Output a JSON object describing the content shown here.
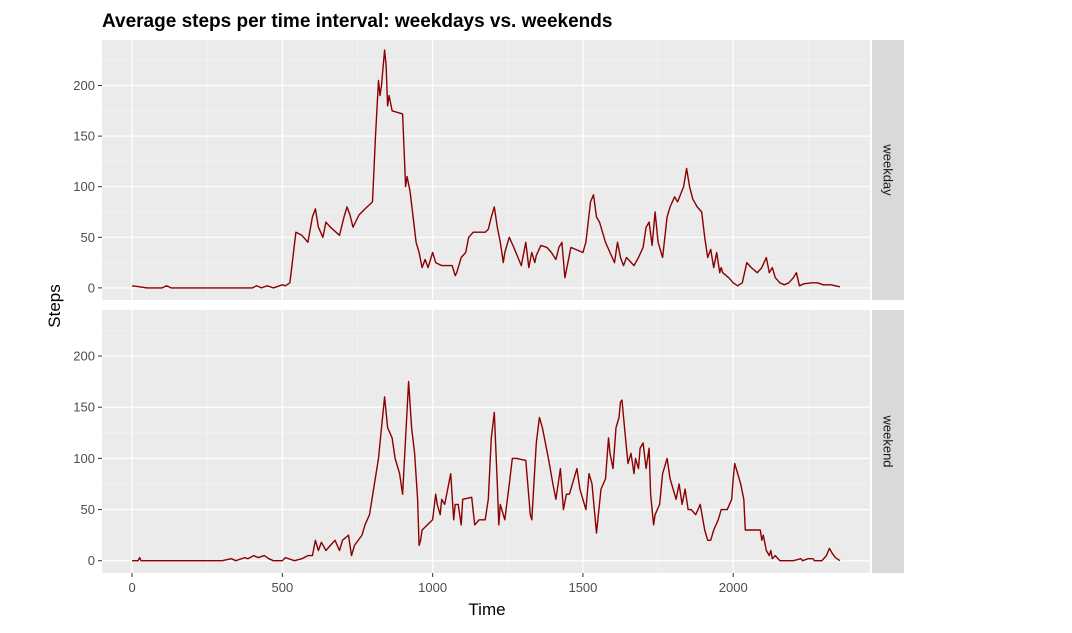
{
  "chart_data": {
    "type": "line",
    "title": "Average steps per time interval: weekdays vs. weekends",
    "xlabel": "Time",
    "ylabel": "Steps",
    "xlim": [
      -100,
      2455
    ],
    "ylim": [
      -12,
      245
    ],
    "x_ticks": [
      0,
      500,
      1000,
      1500,
      2000
    ],
    "y_ticks": [
      0,
      50,
      100,
      150,
      200
    ],
    "grid": true,
    "line_color": "#8b0000",
    "panel_bg": "#ebebeb",
    "strip_bg": "#d9d9d9",
    "panels": [
      {
        "label": "weekday",
        "points": [
          [
            0,
            2
          ],
          [
            25,
            1
          ],
          [
            50,
            0
          ],
          [
            100,
            0
          ],
          [
            115,
            2
          ],
          [
            130,
            0
          ],
          [
            200,
            0
          ],
          [
            300,
            0
          ],
          [
            400,
            0
          ],
          [
            415,
            2
          ],
          [
            430,
            0
          ],
          [
            450,
            2
          ],
          [
            470,
            0
          ],
          [
            500,
            3
          ],
          [
            510,
            2
          ],
          [
            525,
            5
          ],
          [
            535,
            30
          ],
          [
            545,
            55
          ],
          [
            565,
            52
          ],
          [
            585,
            45
          ],
          [
            600,
            70
          ],
          [
            610,
            78
          ],
          [
            620,
            60
          ],
          [
            635,
            50
          ],
          [
            645,
            65
          ],
          [
            660,
            60
          ],
          [
            690,
            52
          ],
          [
            705,
            70
          ],
          [
            715,
            80
          ],
          [
            725,
            72
          ],
          [
            735,
            60
          ],
          [
            755,
            72
          ],
          [
            775,
            78
          ],
          [
            800,
            85
          ],
          [
            810,
            150
          ],
          [
            820,
            205
          ],
          [
            825,
            190
          ],
          [
            830,
            200
          ],
          [
            840,
            235
          ],
          [
            845,
            220
          ],
          [
            850,
            180
          ],
          [
            855,
            190
          ],
          [
            865,
            175
          ],
          [
            900,
            172
          ],
          [
            910,
            100
          ],
          [
            915,
            110
          ],
          [
            925,
            95
          ],
          [
            935,
            70
          ],
          [
            945,
            45
          ],
          [
            955,
            35
          ],
          [
            965,
            20
          ],
          [
            975,
            28
          ],
          [
            985,
            20
          ],
          [
            1000,
            35
          ],
          [
            1010,
            25
          ],
          [
            1030,
            22
          ],
          [
            1065,
            22
          ],
          [
            1075,
            12
          ],
          [
            1080,
            15
          ],
          [
            1095,
            30
          ],
          [
            1110,
            35
          ],
          [
            1120,
            50
          ],
          [
            1135,
            55
          ],
          [
            1175,
            55
          ],
          [
            1185,
            58
          ],
          [
            1195,
            70
          ],
          [
            1205,
            80
          ],
          [
            1215,
            60
          ],
          [
            1225,
            45
          ],
          [
            1235,
            25
          ],
          [
            1240,
            35
          ],
          [
            1255,
            50
          ],
          [
            1270,
            40
          ],
          [
            1295,
            22
          ],
          [
            1310,
            45
          ],
          [
            1320,
            20
          ],
          [
            1330,
            35
          ],
          [
            1340,
            25
          ],
          [
            1345,
            32
          ],
          [
            1360,
            42
          ],
          [
            1380,
            40
          ],
          [
            1395,
            35
          ],
          [
            1410,
            28
          ],
          [
            1420,
            40
          ],
          [
            1430,
            45
          ],
          [
            1440,
            10
          ],
          [
            1460,
            40
          ],
          [
            1500,
            35
          ],
          [
            1510,
            45
          ],
          [
            1525,
            85
          ],
          [
            1535,
            92
          ],
          [
            1545,
            70
          ],
          [
            1555,
            65
          ],
          [
            1575,
            45
          ],
          [
            1590,
            35
          ],
          [
            1605,
            25
          ],
          [
            1615,
            45
          ],
          [
            1625,
            30
          ],
          [
            1635,
            22
          ],
          [
            1645,
            30
          ],
          [
            1670,
            22
          ],
          [
            1685,
            30
          ],
          [
            1700,
            40
          ],
          [
            1710,
            60
          ],
          [
            1720,
            65
          ],
          [
            1730,
            42
          ],
          [
            1740,
            75
          ],
          [
            1750,
            45
          ],
          [
            1765,
            30
          ],
          [
            1780,
            70
          ],
          [
            1790,
            80
          ],
          [
            1805,
            90
          ],
          [
            1815,
            85
          ],
          [
            1835,
            100
          ],
          [
            1845,
            118
          ],
          [
            1855,
            100
          ],
          [
            1865,
            88
          ],
          [
            1880,
            80
          ],
          [
            1895,
            75
          ],
          [
            1905,
            50
          ],
          [
            1915,
            30
          ],
          [
            1925,
            38
          ],
          [
            1935,
            20
          ],
          [
            1945,
            35
          ],
          [
            1955,
            15
          ],
          [
            1960,
            20
          ],
          [
            1965,
            15
          ],
          [
            1985,
            10
          ],
          [
            2000,
            5
          ],
          [
            2015,
            2
          ],
          [
            2030,
            5
          ],
          [
            2045,
            25
          ],
          [
            2060,
            20
          ],
          [
            2080,
            15
          ],
          [
            2095,
            20
          ],
          [
            2110,
            30
          ],
          [
            2120,
            15
          ],
          [
            2130,
            20
          ],
          [
            2140,
            10
          ],
          [
            2155,
            5
          ],
          [
            2170,
            3
          ],
          [
            2185,
            5
          ],
          [
            2200,
            10
          ],
          [
            2210,
            15
          ],
          [
            2220,
            2
          ],
          [
            2235,
            4
          ],
          [
            2260,
            5
          ],
          [
            2280,
            5
          ],
          [
            2300,
            3
          ],
          [
            2325,
            3
          ],
          [
            2340,
            2
          ],
          [
            2355,
            1
          ]
        ]
      },
      {
        "label": "weekend",
        "points": [
          [
            0,
            0
          ],
          [
            20,
            0
          ],
          [
            25,
            3
          ],
          [
            30,
            0
          ],
          [
            100,
            0
          ],
          [
            200,
            0
          ],
          [
            300,
            0
          ],
          [
            330,
            2
          ],
          [
            345,
            0
          ],
          [
            375,
            3
          ],
          [
            385,
            2
          ],
          [
            405,
            5
          ],
          [
            420,
            3
          ],
          [
            440,
            5
          ],
          [
            455,
            2
          ],
          [
            470,
            0
          ],
          [
            500,
            0
          ],
          [
            510,
            3
          ],
          [
            540,
            0
          ],
          [
            565,
            2
          ],
          [
            585,
            5
          ],
          [
            600,
            5
          ],
          [
            610,
            20
          ],
          [
            620,
            10
          ],
          [
            630,
            18
          ],
          [
            645,
            10
          ],
          [
            660,
            15
          ],
          [
            675,
            20
          ],
          [
            690,
            10
          ],
          [
            700,
            20
          ],
          [
            720,
            25
          ],
          [
            730,
            5
          ],
          [
            740,
            15
          ],
          [
            765,
            25
          ],
          [
            775,
            35
          ],
          [
            790,
            45
          ],
          [
            820,
            100
          ],
          [
            830,
            130
          ],
          [
            840,
            160
          ],
          [
            850,
            130
          ],
          [
            865,
            120
          ],
          [
            875,
            100
          ],
          [
            880,
            95
          ],
          [
            890,
            85
          ],
          [
            900,
            65
          ],
          [
            910,
            120
          ],
          [
            920,
            175
          ],
          [
            930,
            130
          ],
          [
            940,
            105
          ],
          [
            950,
            60
          ],
          [
            955,
            15
          ],
          [
            960,
            20
          ],
          [
            965,
            30
          ],
          [
            1000,
            40
          ],
          [
            1010,
            65
          ],
          [
            1015,
            55
          ],
          [
            1025,
            45
          ],
          [
            1030,
            60
          ],
          [
            1040,
            55
          ],
          [
            1060,
            85
          ],
          [
            1070,
            40
          ],
          [
            1075,
            55
          ],
          [
            1085,
            55
          ],
          [
            1095,
            35
          ],
          [
            1100,
            60
          ],
          [
            1130,
            62
          ],
          [
            1140,
            35
          ],
          [
            1155,
            40
          ],
          [
            1175,
            40
          ],
          [
            1185,
            60
          ],
          [
            1195,
            120
          ],
          [
            1205,
            145
          ],
          [
            1215,
            75
          ],
          [
            1220,
            35
          ],
          [
            1225,
            55
          ],
          [
            1240,
            40
          ],
          [
            1255,
            75
          ],
          [
            1265,
            100
          ],
          [
            1280,
            100
          ],
          [
            1310,
            98
          ],
          [
            1325,
            45
          ],
          [
            1330,
            40
          ],
          [
            1345,
            115
          ],
          [
            1355,
            140
          ],
          [
            1365,
            130
          ],
          [
            1385,
            100
          ],
          [
            1400,
            75
          ],
          [
            1410,
            60
          ],
          [
            1425,
            90
          ],
          [
            1435,
            50
          ],
          [
            1445,
            65
          ],
          [
            1455,
            65
          ],
          [
            1480,
            90
          ],
          [
            1490,
            70
          ],
          [
            1510,
            50
          ],
          [
            1520,
            85
          ],
          [
            1530,
            75
          ],
          [
            1545,
            27
          ],
          [
            1560,
            70
          ],
          [
            1575,
            80
          ],
          [
            1585,
            120
          ],
          [
            1590,
            105
          ],
          [
            1600,
            90
          ],
          [
            1610,
            130
          ],
          [
            1620,
            140
          ],
          [
            1625,
            155
          ],
          [
            1630,
            157
          ],
          [
            1640,
            125
          ],
          [
            1650,
            95
          ],
          [
            1660,
            105
          ],
          [
            1670,
            85
          ],
          [
            1675,
            100
          ],
          [
            1685,
            90
          ],
          [
            1690,
            110
          ],
          [
            1700,
            115
          ],
          [
            1710,
            90
          ],
          [
            1720,
            110
          ],
          [
            1725,
            65
          ],
          [
            1730,
            50
          ],
          [
            1735,
            35
          ],
          [
            1740,
            45
          ],
          [
            1755,
            55
          ],
          [
            1765,
            85
          ],
          [
            1780,
            100
          ],
          [
            1790,
            80
          ],
          [
            1800,
            70
          ],
          [
            1810,
            60
          ],
          [
            1820,
            75
          ],
          [
            1830,
            55
          ],
          [
            1840,
            70
          ],
          [
            1850,
            50
          ],
          [
            1860,
            50
          ],
          [
            1875,
            45
          ],
          [
            1890,
            55
          ],
          [
            1905,
            30
          ],
          [
            1915,
            20
          ],
          [
            1925,
            20
          ],
          [
            1935,
            30
          ],
          [
            1950,
            40
          ],
          [
            1960,
            50
          ],
          [
            1980,
            50
          ],
          [
            1995,
            60
          ],
          [
            2000,
            80
          ],
          [
            2005,
            95
          ],
          [
            2015,
            85
          ],
          [
            2025,
            75
          ],
          [
            2035,
            60
          ],
          [
            2040,
            30
          ],
          [
            2090,
            30
          ],
          [
            2095,
            20
          ],
          [
            2100,
            25
          ],
          [
            2110,
            10
          ],
          [
            2120,
            5
          ],
          [
            2125,
            10
          ],
          [
            2130,
            2
          ],
          [
            2140,
            5
          ],
          [
            2155,
            0
          ],
          [
            2200,
            0
          ],
          [
            2225,
            2
          ],
          [
            2230,
            0
          ],
          [
            2250,
            2
          ],
          [
            2265,
            2
          ],
          [
            2270,
            0
          ],
          [
            2295,
            0
          ],
          [
            2310,
            5
          ],
          [
            2320,
            12
          ],
          [
            2330,
            7
          ],
          [
            2340,
            3
          ],
          [
            2355,
            0
          ]
        ]
      }
    ]
  }
}
